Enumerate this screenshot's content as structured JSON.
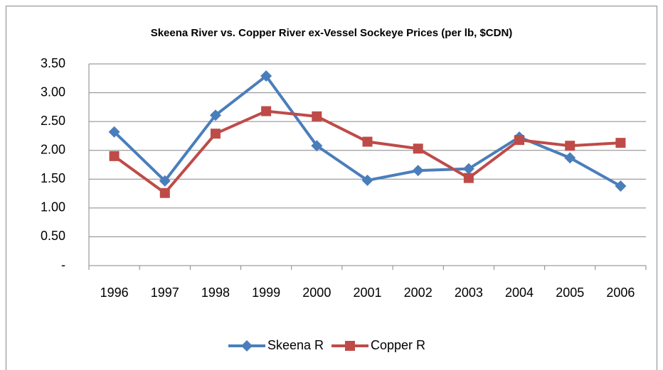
{
  "chart_data": {
    "type": "line",
    "title": "Skeena River vs. Copper River ex-Vessel  Sockeye Prices (per lb, $CDN)",
    "categories": [
      "1996",
      "1997",
      "1998",
      "1999",
      "2000",
      "2001",
      "2002",
      "2003",
      "2004",
      "2005",
      "2006"
    ],
    "series": [
      {
        "name": "Skeena R",
        "color": "#4a7ebb",
        "marker": "diamond",
        "values": [
          2.32,
          1.47,
          2.61,
          3.29,
          2.08,
          1.48,
          1.65,
          1.68,
          2.23,
          1.87,
          1.38
        ]
      },
      {
        "name": "Copper R",
        "color": "#be4b48",
        "marker": "square",
        "values": [
          1.9,
          1.26,
          2.29,
          2.68,
          2.59,
          2.15,
          2.03,
          1.52,
          2.18,
          2.08,
          2.13
        ]
      }
    ],
    "ylim": [
      0,
      3.5
    ],
    "yticks": [
      {
        "value": 0,
        "label": "-"
      },
      {
        "value": 0.5,
        "label": "0.50"
      },
      {
        "value": 1,
        "label": "1.00"
      },
      {
        "value": 1.5,
        "label": "1.50"
      },
      {
        "value": 2,
        "label": "2.00"
      },
      {
        "value": 2.5,
        "label": "2.50"
      },
      {
        "value": 3,
        "label": "3.00"
      },
      {
        "value": 3.5,
        "label": "3.50"
      }
    ],
    "grid": true,
    "legend": "bottom"
  }
}
